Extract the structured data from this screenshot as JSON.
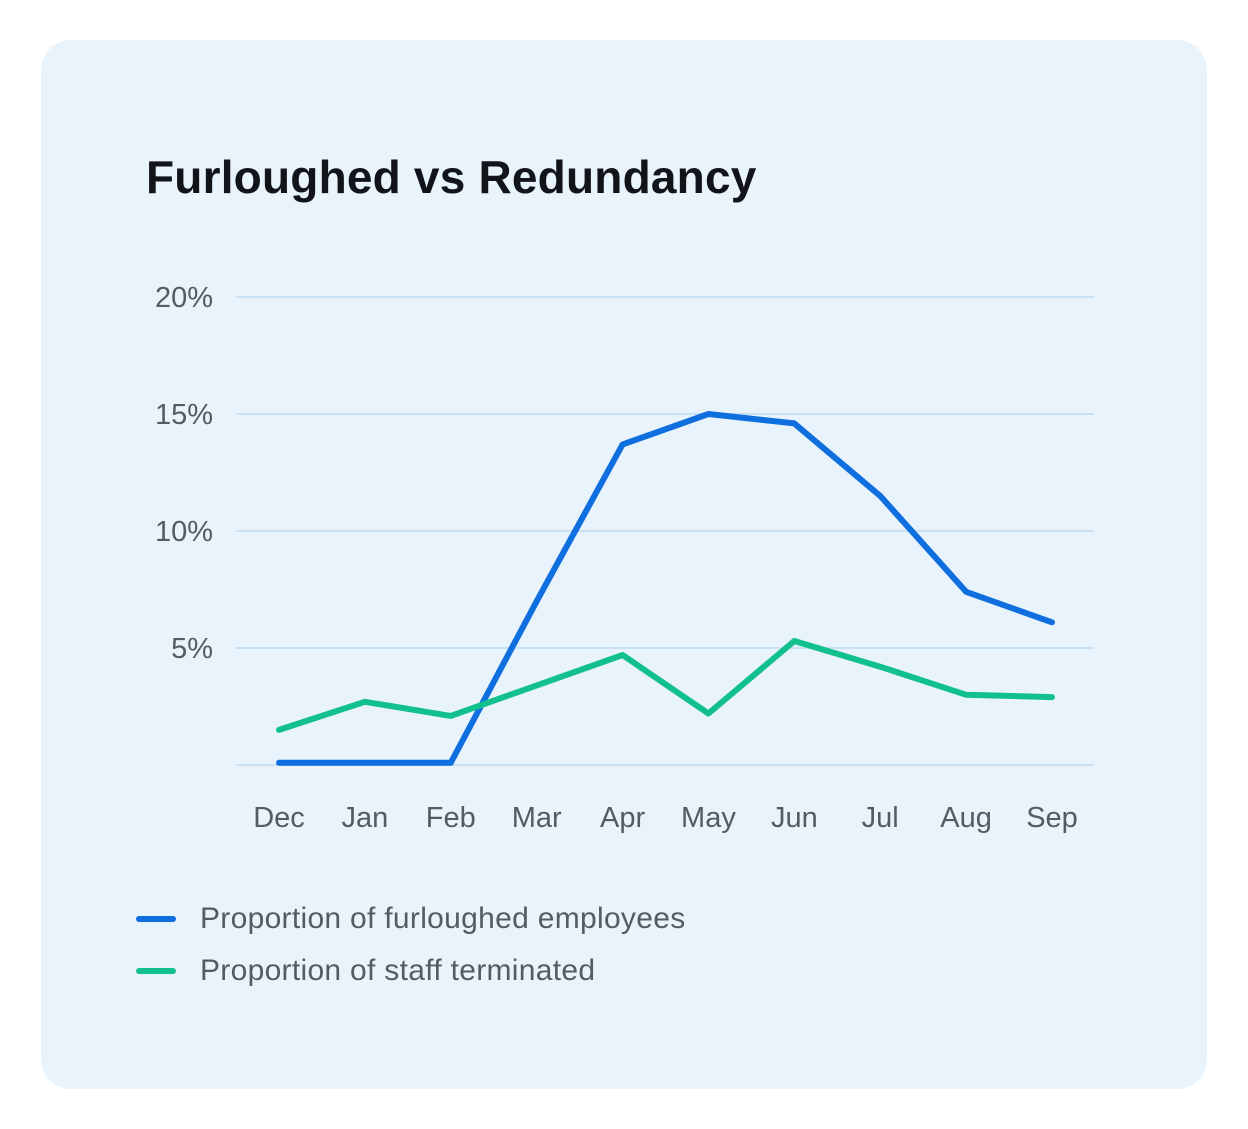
{
  "card": {
    "title": "Furloughed vs Redundancy"
  },
  "chart_data": {
    "type": "line",
    "title": "Furloughed vs Redundancy",
    "xlabel": "",
    "ylabel": "",
    "categories": [
      "Dec",
      "Jan",
      "Feb",
      "Mar",
      "Apr",
      "May",
      "Jun",
      "Jul",
      "Aug",
      "Sep"
    ],
    "y_ticks": [
      {
        "value": 5,
        "label": "5%"
      },
      {
        "value": 10,
        "label": "10%"
      },
      {
        "value": 15,
        "label": "15%"
      },
      {
        "value": 20,
        "label": "20%"
      }
    ],
    "ylim": [
      0,
      20
    ],
    "grid": true,
    "legend_position": "bottom-left",
    "series": [
      {
        "name": "Proportion of furloughed employees",
        "color": "#0f6fde",
        "values": [
          0.1,
          0.1,
          0.1,
          7.0,
          13.7,
          15.0,
          14.6,
          11.5,
          7.4,
          6.1
        ]
      },
      {
        "name": "Proportion of staff terminated",
        "color": "#12c08e",
        "values": [
          1.5,
          2.7,
          2.1,
          3.4,
          4.7,
          2.2,
          5.3,
          4.2,
          3.0,
          2.9
        ]
      }
    ]
  },
  "colors": {
    "card_background": "#e8f3fc",
    "gridline": "#c9e1f5",
    "tick_text": "#555b63"
  }
}
